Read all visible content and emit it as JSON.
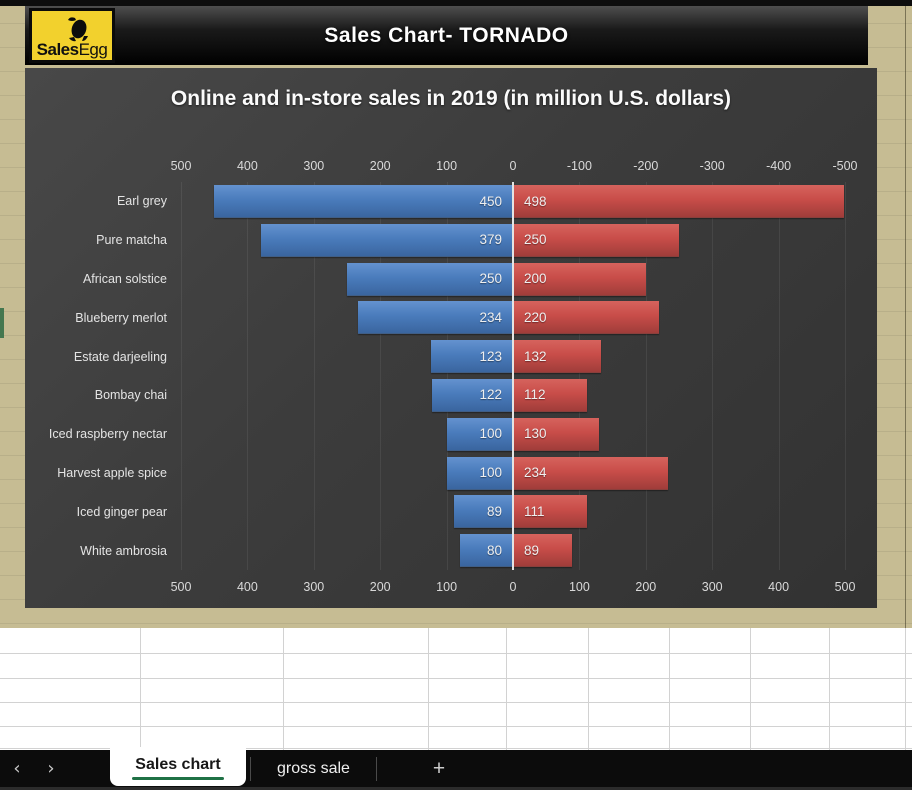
{
  "header": {
    "logo": {
      "text_bold": "Sales",
      "text_light": "Egg",
      "bg_color": "#f2d12d",
      "icon": "egg-icon"
    },
    "banner_title": "Sales Chart- TORNADO"
  },
  "chart_data": {
    "type": "bar",
    "variant": "tornado (horizontal diverging bars)",
    "title": "Online and in-store sales in 2019 (in million U.S. dollars)",
    "categories": [
      "Earl grey",
      "Pure matcha",
      "African solstice",
      "Blueberry merlot",
      "Estate darjeeling",
      "Bombay chai",
      "Iced raspberry nectar",
      "Harvest apple spice",
      "Iced ginger pear",
      "White ambrosia"
    ],
    "series": [
      {
        "name": "Online",
        "side": "left",
        "color": "#4a7cbc",
        "values": [
          450,
          379,
          250,
          234,
          123,
          122,
          100,
          100,
          89,
          80
        ]
      },
      {
        "name": "In-store",
        "side": "right",
        "color": "#c84d49",
        "values": [
          498,
          250,
          200,
          220,
          132,
          112,
          130,
          234,
          111,
          89
        ]
      }
    ],
    "axis_top_ticks": [
      "500",
      "400",
      "300",
      "200",
      "100",
      "0",
      "-100",
      "-200",
      "-300",
      "-400",
      "-500"
    ],
    "axis_bottom_ticks": [
      "500",
      "400",
      "300",
      "200",
      "100",
      "0",
      "100",
      "200",
      "300",
      "400",
      "500"
    ],
    "xlim_each_side": 500,
    "grid": true,
    "background": "#3e3e3e",
    "center_line_color": "#e4e4e4"
  },
  "sheet_tabs": {
    "icons": {
      "prev": "‹",
      "next": "›",
      "add": "+"
    },
    "tabs": [
      {
        "label": "Sales chart",
        "active": true
      },
      {
        "label": "gross sale",
        "active": false
      }
    ],
    "active_underline_color": "#1f7145"
  }
}
